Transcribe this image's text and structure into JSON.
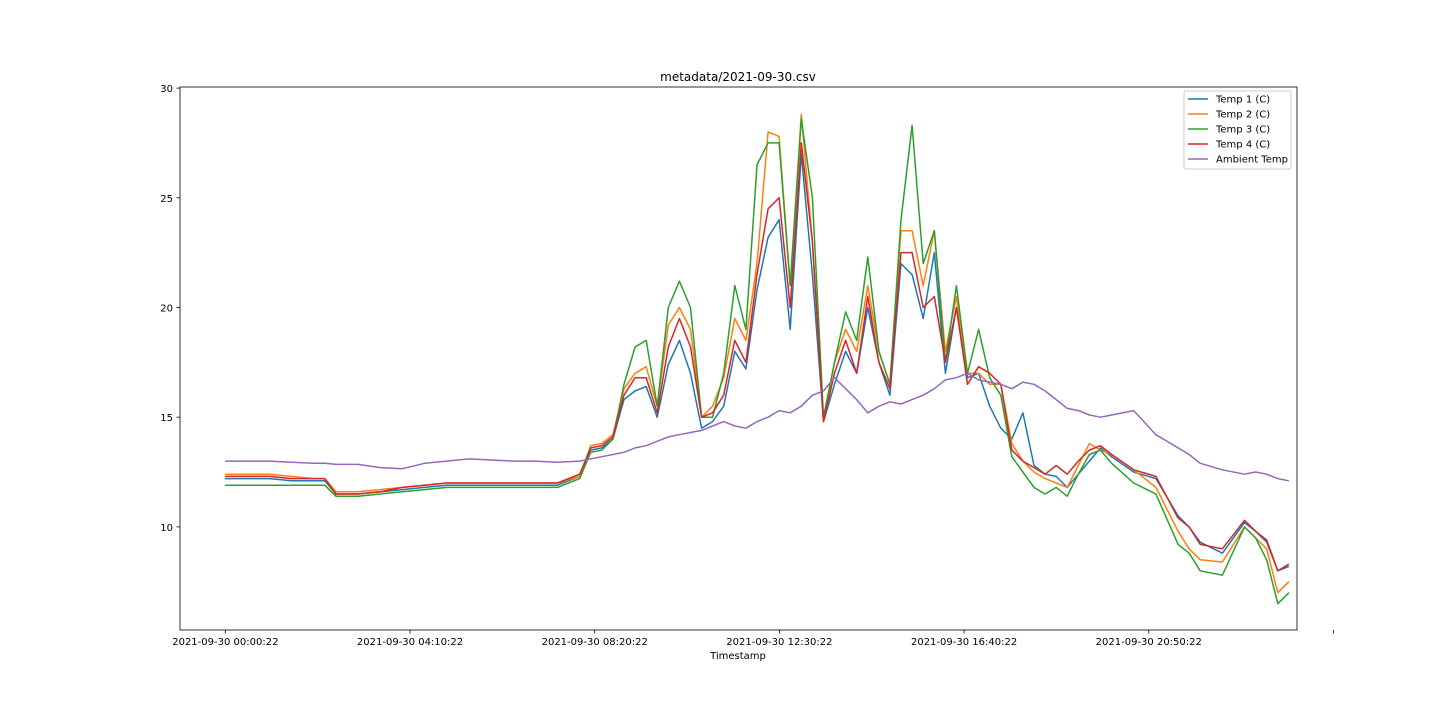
{
  "chart_data": {
    "type": "line",
    "title": "metadata/2021-09-30.csv",
    "xlabel": "Timestamp",
    "ylabel": "",
    "xlim": [
      "2021-09-29 22:59:00",
      "2021-10-01 00:11:00"
    ],
    "ylim": [
      5.3,
      30.05
    ],
    "x_tick_labels": [
      "2021-09-30 00:00:22",
      "2021-09-30 04:10:22",
      "2021-09-30 08:20:22",
      "2021-09-30 12:30:22",
      "2021-09-30 16:40:22",
      "2021-09-30 20:50:22"
    ],
    "y_ticks": [
      10,
      15,
      20,
      25,
      30
    ],
    "grid": false,
    "legend_position": "upper right",
    "x": [
      "00:00",
      "00:30",
      "01:00",
      "01:30",
      "02:00",
      "02:15",
      "02:30",
      "03:00",
      "03:30",
      "04:00",
      "04:30",
      "05:00",
      "05:30",
      "06:00",
      "06:30",
      "07:00",
      "07:30",
      "08:00",
      "08:15",
      "08:30",
      "08:45",
      "09:00",
      "09:15",
      "09:30",
      "09:45",
      "10:00",
      "10:15",
      "10:30",
      "10:45",
      "11:00",
      "11:15",
      "11:30",
      "11:45",
      "12:00",
      "12:15",
      "12:30",
      "12:45",
      "13:00",
      "13:15",
      "13:30",
      "13:45",
      "14:00",
      "14:15",
      "14:30",
      "14:45",
      "15:00",
      "15:15",
      "15:30",
      "15:45",
      "16:00",
      "16:15",
      "16:30",
      "16:45",
      "17:00",
      "17:15",
      "17:30",
      "17:45",
      "18:00",
      "18:15",
      "18:30",
      "18:45",
      "19:00",
      "19:15",
      "19:30",
      "19:45",
      "20:00",
      "20:30",
      "21:00",
      "21:30",
      "21:45",
      "22:00",
      "22:30",
      "23:00",
      "23:15",
      "23:30",
      "23:45",
      "24:00"
    ],
    "series": [
      {
        "name": "Temp 1 (C)",
        "color": "#1f77b4",
        "values": [
          12.2,
          12.2,
          12.2,
          12.1,
          12.1,
          12.1,
          11.5,
          11.5,
          11.6,
          11.7,
          11.8,
          11.9,
          11.9,
          11.9,
          11.9,
          11.9,
          11.9,
          12.3,
          13.5,
          13.6,
          14.0,
          15.8,
          16.2,
          16.4,
          15.0,
          17.4,
          18.5,
          17.0,
          14.5,
          14.8,
          15.5,
          18.0,
          17.2,
          20.8,
          23.2,
          24.0,
          19.0,
          27.0,
          21.5,
          14.8,
          16.5,
          18.0,
          17.0,
          20.0,
          17.5,
          16.0,
          22.0,
          21.5,
          19.5,
          22.5,
          17.0,
          20.0,
          16.8,
          17.0,
          15.5,
          14.5,
          14.0,
          15.2,
          12.8,
          12.4,
          12.3,
          11.8,
          12.4,
          13.0,
          13.6,
          13.2,
          12.5,
          12.2,
          10.5,
          10.0,
          9.3,
          8.8,
          10.2,
          9.8,
          9.3,
          8.0,
          8.2
        ]
      },
      {
        "name": "Temp 2 (C)",
        "color": "#ff7f0e",
        "values": [
          12.4,
          12.4,
          12.4,
          12.3,
          12.2,
          12.2,
          11.6,
          11.6,
          11.7,
          11.8,
          11.9,
          12.0,
          12.0,
          12.0,
          12.0,
          12.0,
          12.0,
          12.3,
          13.7,
          13.8,
          14.2,
          16.3,
          17.0,
          17.3,
          15.5,
          19.2,
          20.0,
          19.0,
          15.0,
          15.5,
          16.8,
          19.5,
          18.5,
          22.0,
          28.0,
          27.8,
          21.0,
          28.8,
          23.0,
          14.8,
          17.5,
          19.0,
          18.0,
          21.0,
          18.0,
          16.5,
          23.5,
          23.5,
          21.0,
          23.5,
          18.0,
          20.5,
          17.0,
          17.0,
          16.5,
          16.5,
          13.8,
          13.0,
          12.5,
          12.2,
          12.0,
          11.8,
          12.8,
          13.8,
          13.5,
          13.3,
          12.6,
          11.8,
          9.8,
          9.0,
          8.5,
          8.4,
          10.0,
          9.5,
          9.0,
          7.0,
          7.5
        ]
      },
      {
        "name": "Temp 3 (C)",
        "color": "#2ca02c",
        "values": [
          11.9,
          11.9,
          11.9,
          11.9,
          11.9,
          11.9,
          11.4,
          11.4,
          11.5,
          11.6,
          11.7,
          11.8,
          11.8,
          11.8,
          11.8,
          11.8,
          11.8,
          12.2,
          13.4,
          13.5,
          14.0,
          16.5,
          18.2,
          18.5,
          15.5,
          20.0,
          21.2,
          20.0,
          15.0,
          15.0,
          17.0,
          21.0,
          19.0,
          26.5,
          27.5,
          27.5,
          21.0,
          28.6,
          25.0,
          15.0,
          17.5,
          19.8,
          18.5,
          22.3,
          18.0,
          16.5,
          24.0,
          28.3,
          22.0,
          23.5,
          17.5,
          21.0,
          17.0,
          19.0,
          16.8,
          16.0,
          13.2,
          12.5,
          11.8,
          11.5,
          11.8,
          11.4,
          12.4,
          13.3,
          13.5,
          12.9,
          12.0,
          11.5,
          9.2,
          8.8,
          8.0,
          7.8,
          10.0,
          9.5,
          8.5,
          6.5,
          7.0
        ]
      },
      {
        "name": "Temp 4 (C)",
        "color": "#d62728",
        "values": [
          12.3,
          12.3,
          12.3,
          12.2,
          12.2,
          12.2,
          11.5,
          11.5,
          11.6,
          11.8,
          11.9,
          12.0,
          12.0,
          12.0,
          12.0,
          12.0,
          12.0,
          12.4,
          13.6,
          13.7,
          14.1,
          16.0,
          16.8,
          16.8,
          15.2,
          18.2,
          19.5,
          18.2,
          15.0,
          15.2,
          16.0,
          18.5,
          17.5,
          21.5,
          24.5,
          25.0,
          20.0,
          27.5,
          23.0,
          14.8,
          17.0,
          18.5,
          17.0,
          20.5,
          17.5,
          16.3,
          22.5,
          22.5,
          20.0,
          20.5,
          17.5,
          20.0,
          16.5,
          17.3,
          17.0,
          16.5,
          13.5,
          13.0,
          12.7,
          12.4,
          12.8,
          12.4,
          13.0,
          13.5,
          13.7,
          13.3,
          12.6,
          12.3,
          10.4,
          10.0,
          9.2,
          9.0,
          10.3,
          9.8,
          9.4,
          8.0,
          8.3
        ]
      },
      {
        "name": "Ambient Temp",
        "color": "#9467bd",
        "values": [
          13.0,
          13.0,
          13.0,
          12.95,
          12.9,
          12.9,
          12.85,
          12.85,
          12.7,
          12.65,
          12.9,
          13.0,
          13.1,
          13.05,
          13.0,
          13.0,
          12.95,
          13.0,
          13.1,
          13.2,
          13.3,
          13.4,
          13.6,
          13.7,
          13.9,
          14.1,
          14.2,
          14.3,
          14.4,
          14.6,
          14.8,
          14.6,
          14.5,
          14.8,
          15.0,
          15.3,
          15.2,
          15.5,
          16.0,
          16.2,
          16.8,
          16.3,
          15.8,
          15.2,
          15.5,
          15.7,
          15.6,
          15.8,
          16.0,
          16.3,
          16.7,
          16.8,
          17.0,
          16.7,
          16.6,
          16.5,
          16.3,
          16.6,
          16.5,
          16.2,
          15.8,
          15.4,
          15.3,
          15.1,
          15.0,
          15.1,
          15.3,
          14.2,
          13.6,
          13.3,
          12.9,
          12.6,
          12.4,
          12.5,
          12.4,
          12.2,
          12.1
        ]
      }
    ]
  }
}
